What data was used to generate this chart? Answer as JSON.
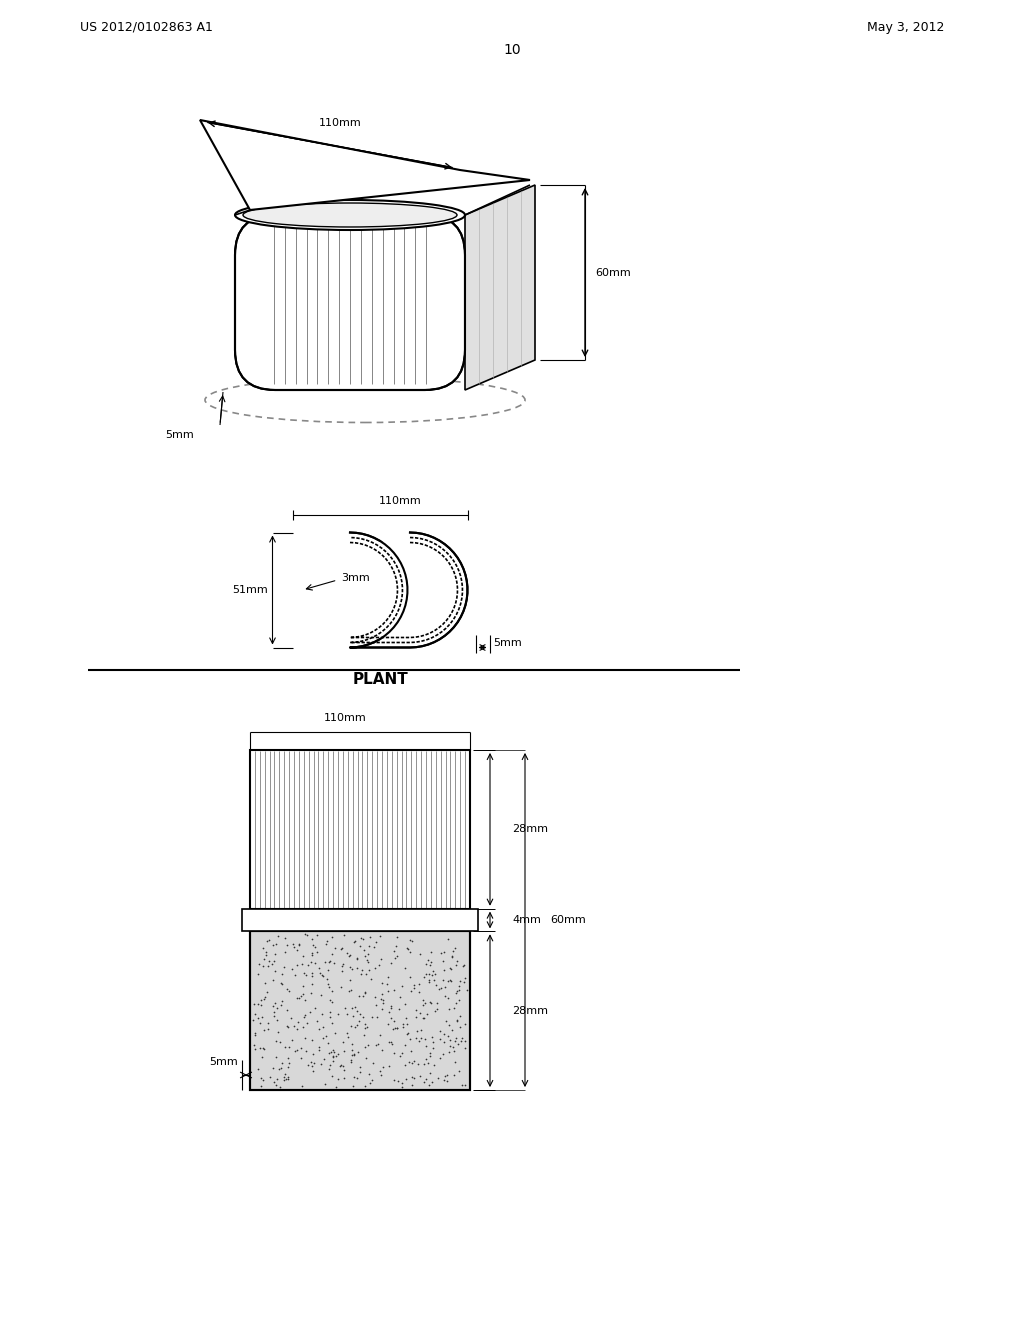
{
  "bg_color": "#ffffff",
  "line_color": "#000000",
  "header_left": "US 2012/0102863 A1",
  "header_right": "May 3, 2012",
  "page_number": "10",
  "dim_110mm_iso": "110mm",
  "dim_5mm_iso": "5mm",
  "dim_60mm_iso": "60mm",
  "dim_110mm_plant": "110mm",
  "dim_51mm_plant": "51mm",
  "dim_3mm_plant": "3mm",
  "dim_5mm_plant": "5mm",
  "dim_110mm_sect": "110mm",
  "dim_28mm_top": "28mm",
  "dim_4mm_mid": "4mm",
  "dim_28mm_bot": "28mm",
  "dim_60mm_sect": "60mm",
  "dim_5mm_sect": "5mm",
  "plant_label": "PLANT"
}
